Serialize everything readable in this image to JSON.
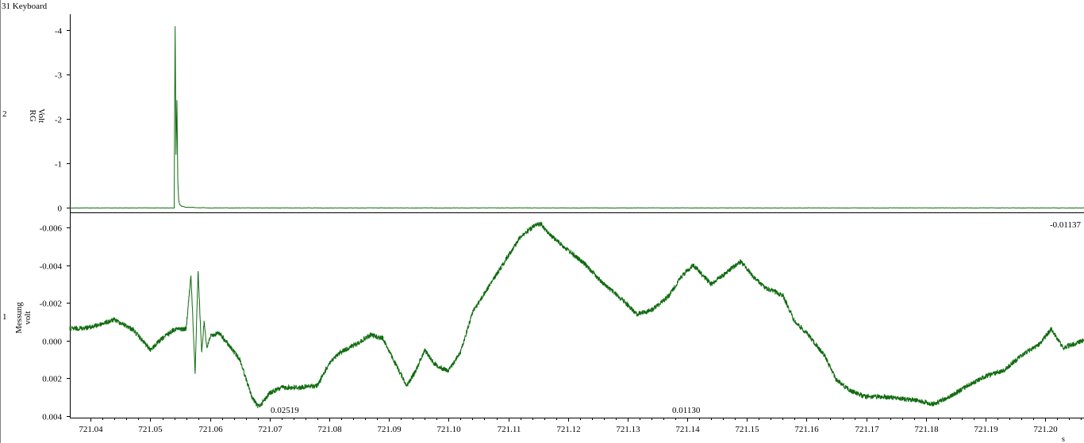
{
  "window_title": "31 Keyboard",
  "colors": {
    "trace": "#0f6b0f",
    "axis": "#000000",
    "background": "#ffffff"
  },
  "chart_data": [
    {
      "type": "line",
      "channel_number": "2",
      "ylabel_lines": [
        "RG",
        "Volt"
      ],
      "ylim": [
        0.1,
        -4.35
      ],
      "y_ticks": [
        -4,
        -3,
        -2,
        -1,
        0
      ],
      "y_tick_labels": [
        "-4",
        "-3",
        "-2",
        "-1",
        "0"
      ],
      "xlim": [
        721.0365,
        721.2065
      ],
      "series": [
        {
          "x": [
            721.0365,
            721.054,
            721.05405,
            721.05415,
            721.0543,
            721.05445,
            721.0546,
            721.05475,
            721.0549,
            721.0552,
            721.056,
            721.06,
            721.2065
          ],
          "values": [
            0.0,
            0.0,
            -1.8,
            -4.08,
            -1.2,
            -2.42,
            -0.6,
            -0.18,
            -0.08,
            -0.04,
            -0.015,
            0.0,
            0.0
          ]
        }
      ]
    },
    {
      "type": "line",
      "channel_number": "1",
      "ylabel_lines": [
        "Messung",
        "volt"
      ],
      "ylim": [
        0.0041,
        -0.0068
      ],
      "y_ticks": [
        -0.006,
        -0.004,
        -0.002,
        0.0,
        0.002,
        0.004
      ],
      "y_tick_labels": [
        "-0.006",
        "-0.004",
        "-0.002",
        "0.000",
        "0.002",
        "0.004"
      ],
      "xlim": [
        721.0365,
        721.2065
      ],
      "x_ticks": [
        721.04,
        721.05,
        721.06,
        721.07,
        721.08,
        721.09,
        721.1,
        721.11,
        721.12,
        721.13,
        721.14,
        721.15,
        721.16,
        721.17,
        721.18,
        721.19,
        721.2
      ],
      "x_tick_labels": [
        "721.04",
        "721.05",
        "721.06",
        "721.07",
        "721.08",
        "721.09",
        "721.10",
        "721.11",
        "721.12",
        "721.13",
        "721.14",
        "721.15",
        "721.16",
        "721.17",
        "721.18",
        "721.19",
        "721.20"
      ],
      "x_unit": "s",
      "annotations": [
        "0.02519",
        "0.01130",
        "-0.01137"
      ],
      "series": [
        {
          "x": [
            721.0365,
            721.04,
            721.044,
            721.047,
            721.05,
            721.052,
            721.054,
            721.056,
            721.0568,
            721.0575,
            721.058,
            721.0586,
            721.059,
            721.0595,
            721.06,
            721.0615,
            721.063,
            721.065,
            721.067,
            721.068,
            721.0685,
            721.07,
            721.072,
            721.075,
            721.078,
            721.08,
            721.082,
            721.0845,
            721.087,
            721.089,
            721.091,
            721.093,
            721.0945,
            721.096,
            721.0975,
            721.099,
            721.1,
            721.102,
            721.104,
            721.107,
            721.11,
            721.112,
            721.1145,
            721.1155,
            721.117,
            721.12,
            721.123,
            721.126,
            721.129,
            721.1315,
            721.134,
            721.137,
            721.139,
            721.141,
            721.144,
            721.1465,
            721.149,
            721.151,
            721.153,
            721.156,
            721.158,
            721.16,
            721.163,
            721.165,
            721.1675,
            721.17,
            721.173,
            721.176,
            721.179,
            721.181,
            721.184,
            721.187,
            721.19,
            721.193,
            721.196,
            721.199,
            721.201,
            721.203,
            721.2065
          ],
          "values": [
            -0.0006,
            -0.0007,
            -0.0011,
            -0.0006,
            0.0005,
            -0.0001,
            -0.0006,
            -0.0006,
            -0.0035,
            0.0017,
            -0.0037,
            0.0007,
            -0.001,
            0.0004,
            -0.0002,
            -0.0004,
            0.0002,
            0.001,
            0.003,
            0.0035,
            0.0034,
            0.0028,
            0.0025,
            0.0025,
            0.0024,
            0.0012,
            0.0006,
            0.0002,
            -0.0003,
            -0.0001,
            0.0012,
            0.0024,
            0.0016,
            0.0005,
            0.0012,
            0.0015,
            0.0016,
            0.0006,
            -0.0015,
            -0.003,
            -0.0045,
            -0.0055,
            -0.0061,
            -0.0062,
            -0.0056,
            -0.0048,
            -0.004,
            -0.003,
            -0.0022,
            -0.0014,
            -0.0016,
            -0.0024,
            -0.0034,
            -0.004,
            -0.003,
            -0.0036,
            -0.0042,
            -0.0034,
            -0.0028,
            -0.0024,
            -0.001,
            -0.0004,
            0.0008,
            0.0021,
            0.0027,
            0.003,
            0.003,
            0.0031,
            0.0032,
            0.0034,
            0.003,
            0.0024,
            0.0019,
            0.0016,
            0.0008,
            0.0002,
            -0.0006,
            0.0004,
            0.0
          ]
        }
      ]
    }
  ]
}
